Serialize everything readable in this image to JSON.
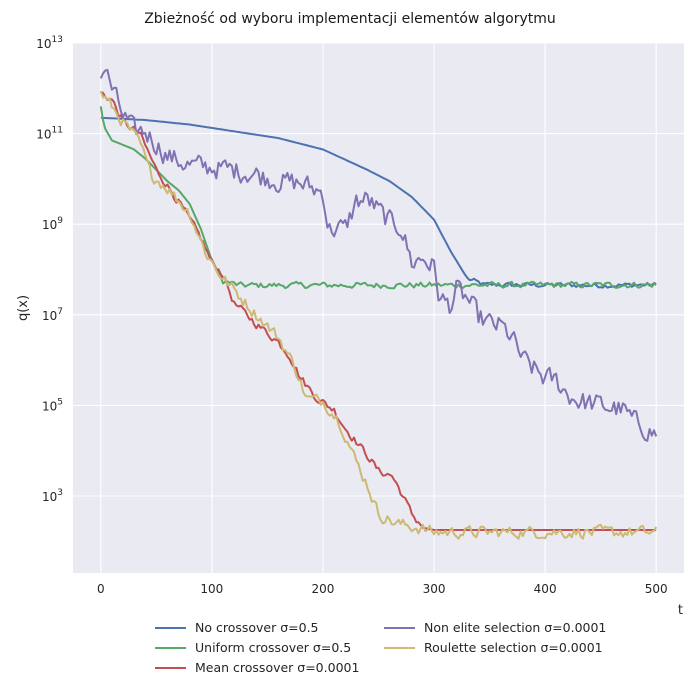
{
  "chart_data": {
    "type": "line",
    "title": "Zbieżność od wyboru implementacji elementów algorytmu",
    "xlabel": "t",
    "ylabel": "q(x)",
    "xlim": [
      -25,
      525
    ],
    "ylim_log10": [
      1.3,
      13.0
    ],
    "yscale": "log",
    "xticks": [
      0,
      100,
      200,
      300,
      400,
      500
    ],
    "yticks": [
      {
        "base": "10",
        "exp": "3",
        "log10": 3
      },
      {
        "base": "10",
        "exp": "5",
        "log10": 5
      },
      {
        "base": "10",
        "exp": "7",
        "log10": 7
      },
      {
        "base": "10",
        "exp": "9",
        "log10": 9
      },
      {
        "base": "10",
        "exp": "11",
        "log10": 11
      },
      {
        "base": "10",
        "exp": "13",
        "log10": 13
      }
    ],
    "grid": true,
    "legend_position": "bottom-center",
    "series": [
      {
        "name": "No crossover σ=0.5",
        "color": "#4c72b0",
        "points": [
          [
            0,
            11.35
          ],
          [
            40,
            11.3
          ],
          [
            80,
            11.2
          ],
          [
            120,
            11.05
          ],
          [
            160,
            10.9
          ],
          [
            200,
            10.65
          ],
          [
            240,
            10.2
          ],
          [
            260,
            9.95
          ],
          [
            280,
            9.6
          ],
          [
            300,
            9.1
          ],
          [
            315,
            8.4
          ],
          [
            330,
            7.8
          ],
          [
            345,
            7.66
          ],
          [
            400,
            7.66
          ],
          [
            450,
            7.65
          ],
          [
            500,
            7.66
          ]
        ],
        "noise": 0.05,
        "noise_from": 330
      },
      {
        "name": "Uniform crossover σ=0.5",
        "color": "#55a868",
        "points": [
          [
            0,
            11.6
          ],
          [
            3,
            11.15
          ],
          [
            10,
            10.85
          ],
          [
            20,
            10.75
          ],
          [
            30,
            10.65
          ],
          [
            40,
            10.45
          ],
          [
            50,
            10.2
          ],
          [
            60,
            9.95
          ],
          [
            70,
            9.75
          ],
          [
            80,
            9.45
          ],
          [
            90,
            8.9
          ],
          [
            100,
            8.2
          ],
          [
            110,
            7.75
          ],
          [
            125,
            7.65
          ],
          [
            500,
            7.66
          ]
        ],
        "noise": 0.06,
        "noise_from": 110
      },
      {
        "name": "Mean crossover σ=0.0001",
        "color": "#c44e52",
        "points": [
          [
            0,
            11.9
          ],
          [
            10,
            11.75
          ],
          [
            20,
            11.25
          ],
          [
            35,
            11.0
          ],
          [
            50,
            10.2
          ],
          [
            70,
            9.5
          ],
          [
            90,
            8.7
          ],
          [
            100,
            8.15
          ],
          [
            110,
            7.9
          ],
          [
            120,
            7.25
          ],
          [
            140,
            6.8
          ],
          [
            160,
            6.4
          ],
          [
            170,
            6.1
          ],
          [
            180,
            5.6
          ],
          [
            195,
            5.15
          ],
          [
            210,
            4.9
          ],
          [
            220,
            4.5
          ],
          [
            230,
            4.2
          ],
          [
            240,
            3.9
          ],
          [
            250,
            3.55
          ],
          [
            262,
            3.45
          ],
          [
            270,
            3.1
          ],
          [
            280,
            2.6
          ],
          [
            290,
            2.3
          ],
          [
            300,
            2.25
          ],
          [
            500,
            2.25
          ]
        ],
        "noise": 0.08,
        "noise_to": 285
      },
      {
        "name": "Non elite selection σ=0.0001",
        "color": "#8172b3",
        "points": [
          [
            0,
            12.2
          ],
          [
            3,
            12.5
          ],
          [
            10,
            12.0
          ],
          [
            20,
            11.4
          ],
          [
            30,
            11.05
          ],
          [
            40,
            11.05
          ],
          [
            60,
            10.5
          ],
          [
            80,
            10.3
          ],
          [
            100,
            10.25
          ],
          [
            120,
            10.2
          ],
          [
            140,
            10.1
          ],
          [
            160,
            9.95
          ],
          [
            180,
            9.9
          ],
          [
            200,
            9.7
          ],
          [
            205,
            8.9
          ],
          [
            220,
            8.9
          ],
          [
            230,
            9.5
          ],
          [
            240,
            9.55
          ],
          [
            260,
            9.05
          ],
          [
            270,
            8.95
          ],
          [
            280,
            8.15
          ],
          [
            290,
            8.25
          ],
          [
            300,
            8.05
          ],
          [
            305,
            7.35
          ],
          [
            315,
            7.2
          ],
          [
            320,
            7.55
          ],
          [
            330,
            7.35
          ],
          [
            340,
            6.95
          ],
          [
            350,
            6.8
          ],
          [
            360,
            6.75
          ],
          [
            370,
            6.5
          ],
          [
            380,
            6.0
          ],
          [
            390,
            5.8
          ],
          [
            400,
            5.6
          ],
          [
            410,
            5.55
          ],
          [
            420,
            5.25
          ],
          [
            430,
            5.1
          ],
          [
            450,
            5.0
          ],
          [
            470,
            4.9
          ],
          [
            480,
            4.65
          ],
          [
            500,
            4.35
          ]
        ],
        "noise": 0.22
      },
      {
        "name": "Roulette selection σ=0.0001",
        "color": "#ccb974",
        "points": [
          [
            0,
            11.9
          ],
          [
            10,
            11.6
          ],
          [
            20,
            11.25
          ],
          [
            35,
            10.8
          ],
          [
            45,
            10.1
          ],
          [
            60,
            9.8
          ],
          [
            80,
            9.25
          ],
          [
            95,
            8.35
          ],
          [
            110,
            7.8
          ],
          [
            120,
            7.55
          ],
          [
            140,
            7.0
          ],
          [
            160,
            6.5
          ],
          [
            175,
            5.85
          ],
          [
            185,
            5.15
          ],
          [
            200,
            5.1
          ],
          [
            215,
            4.65
          ],
          [
            230,
            3.75
          ],
          [
            240,
            3.25
          ],
          [
            250,
            2.6
          ],
          [
            265,
            2.4
          ],
          [
            285,
            2.3
          ],
          [
            300,
            2.2
          ],
          [
            500,
            2.2
          ]
        ],
        "noise": 0.12
      }
    ]
  }
}
